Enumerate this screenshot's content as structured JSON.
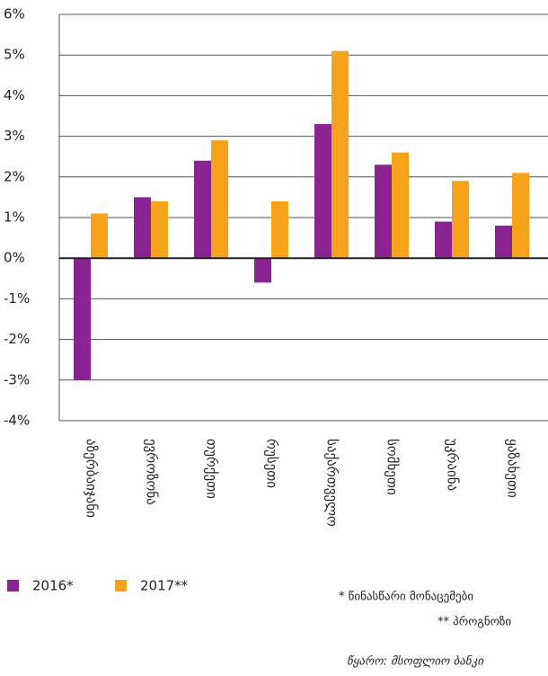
{
  "chart_data": {
    "type": "bar",
    "categories": [
      "აზერბაიჯანი",
      "ევროზონა",
      "თურქეთი",
      "რუსეთი",
      "საქართველო",
      "სომხეთი",
      "უკრაინა",
      "ყაზახეთი"
    ],
    "series": [
      {
        "name": "2016*",
        "color": "#8b2291",
        "values": [
          -3.0,
          1.5,
          2.4,
          -0.6,
          3.3,
          2.3,
          0.9,
          0.8
        ]
      },
      {
        "name": "2017**",
        "color": "#f7a21b",
        "values": [
          1.1,
          1.4,
          2.9,
          1.4,
          5.1,
          2.6,
          1.9,
          2.1
        ]
      }
    ],
    "ylim": [
      -4,
      6
    ],
    "yticks": [
      {
        "value": -4,
        "label": "-4%"
      },
      {
        "value": -3,
        "label": "-3%"
      },
      {
        "value": -2,
        "label": "-2%"
      },
      {
        "value": -1,
        "label": "-1%"
      },
      {
        "value": 0,
        "label": "0%"
      },
      {
        "value": 1,
        "label": "1%"
      },
      {
        "value": 2,
        "label": "2%"
      },
      {
        "value": 3,
        "label": "3%"
      },
      {
        "value": 4,
        "label": "4%"
      },
      {
        "value": 5,
        "label": "5%"
      },
      {
        "value": 6,
        "label": "6%"
      }
    ],
    "grid": true,
    "notes": [
      "* წინასწარი მონაცემები",
      "** პროგნოზი"
    ],
    "source": "წყარო: მსოფლიო ბანკი"
  }
}
